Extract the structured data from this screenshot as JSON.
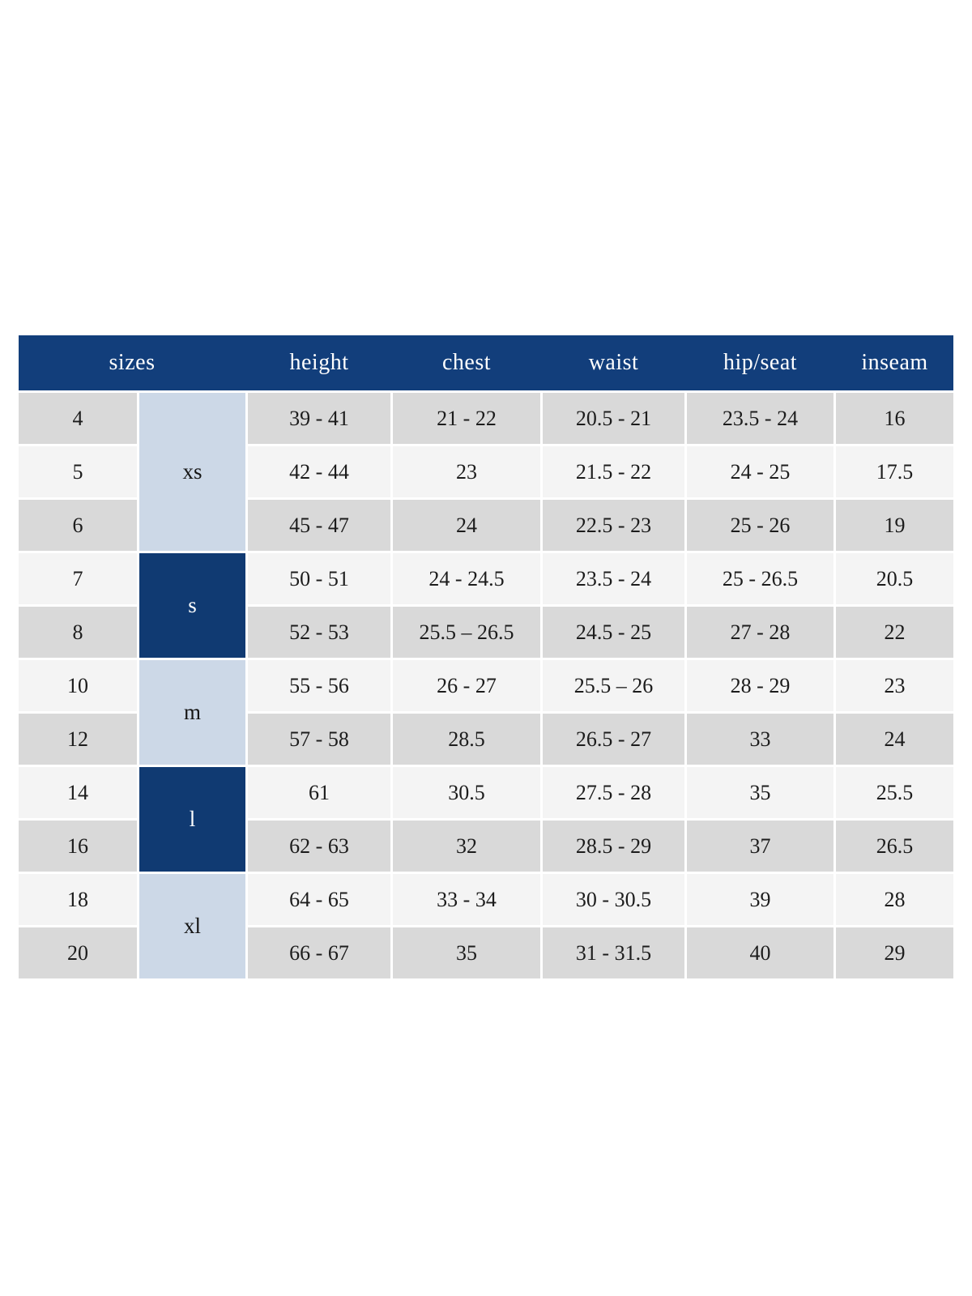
{
  "chart_data": {
    "type": "table",
    "headers": [
      {
        "label": "sizes",
        "span": 2
      },
      {
        "label": "height",
        "span": 1
      },
      {
        "label": "chest",
        "span": 1
      },
      {
        "label": "waist",
        "span": 1
      },
      {
        "label": "hip/seat",
        "span": 1
      },
      {
        "label": "inseam",
        "span": 1
      }
    ],
    "size_groups": [
      {
        "label": "xs",
        "row_count": 3,
        "variant": "light"
      },
      {
        "label": "s",
        "row_count": 2,
        "variant": "dark"
      },
      {
        "label": "m",
        "row_count": 2,
        "variant": "light"
      },
      {
        "label": "l",
        "row_count": 2,
        "variant": "dark"
      },
      {
        "label": "xl",
        "row_count": 2,
        "variant": "light"
      }
    ],
    "rows": [
      {
        "size": "4",
        "group": "xs",
        "height": "39 - 41",
        "chest": "21 - 22",
        "waist": "20.5 - 21",
        "hip_seat": "23.5 - 24",
        "inseam": "16"
      },
      {
        "size": "5",
        "group": "xs",
        "height": "42 - 44",
        "chest": "23",
        "waist": "21.5 - 22",
        "hip_seat": "24 - 25",
        "inseam": "17.5"
      },
      {
        "size": "6",
        "group": "xs",
        "height": "45 - 47",
        "chest": "24",
        "waist": "22.5 - 23",
        "hip_seat": "25 - 26",
        "inseam": "19"
      },
      {
        "size": "7",
        "group": "s",
        "height": "50 - 51",
        "chest": "24 - 24.5",
        "waist": "23.5 - 24",
        "hip_seat": "25 - 26.5",
        "inseam": "20.5"
      },
      {
        "size": "8",
        "group": "s",
        "height": "52 - 53",
        "chest": "25.5 – 26.5",
        "waist": "24.5 - 25",
        "hip_seat": "27 - 28",
        "inseam": "22"
      },
      {
        "size": "10",
        "group": "m",
        "height": "55 - 56",
        "chest": "26 - 27",
        "waist": "25.5 – 26",
        "hip_seat": "28 - 29",
        "inseam": "23"
      },
      {
        "size": "12",
        "group": "m",
        "height": "57 - 58",
        "chest": "28.5",
        "waist": "26.5 - 27",
        "hip_seat": "33",
        "inseam": "24"
      },
      {
        "size": "14",
        "group": "l",
        "height": "61",
        "chest": "30.5",
        "waist": "27.5 - 28",
        "hip_seat": "35",
        "inseam": "25.5"
      },
      {
        "size": "16",
        "group": "l",
        "height": "62 - 63",
        "chest": "32",
        "waist": "28.5 - 29",
        "hip_seat": "37",
        "inseam": "26.5"
      },
      {
        "size": "18",
        "group": "xl",
        "height": "64 - 65",
        "chest": "33 - 34",
        "waist": "30 - 30.5",
        "hip_seat": "39",
        "inseam": "28"
      },
      {
        "size": "20",
        "group": "xl",
        "height": "66 - 67",
        "chest": "35",
        "waist": "31 - 31.5",
        "hip_seat": "40",
        "inseam": "29"
      }
    ]
  },
  "colors": {
    "header_navy": "#123e7b",
    "group_navy": "#103a72",
    "group_light_blue": "#ccd8e7",
    "row_gray": "#d9d9d9",
    "row_light": "#f4f4f4",
    "header_text": "#ffffff",
    "body_text": "#1c1c1c",
    "background": "#ffffff"
  }
}
